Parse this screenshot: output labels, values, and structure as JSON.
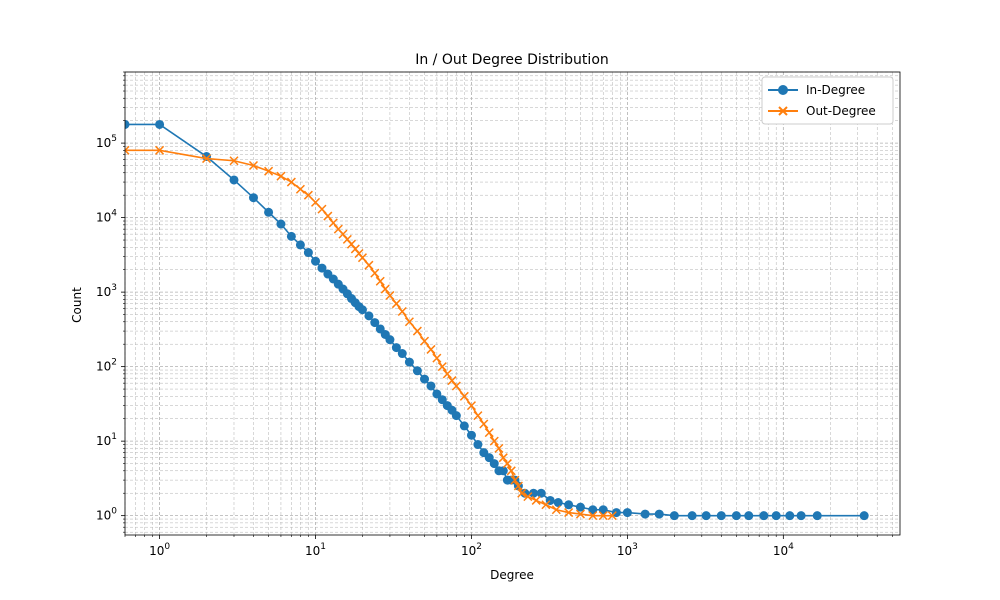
{
  "chart_data": {
    "type": "line",
    "title": "In / Out Degree Distribution",
    "xlabel": "Degree",
    "ylabel": "Count",
    "xscale": "log",
    "yscale": "log",
    "xlim": [
      0.6,
      56000
    ],
    "ylim": [
      0.55,
      900000
    ],
    "grid": true,
    "legend_position": "top-right",
    "x_ticks": [
      1,
      10,
      100,
      1000,
      10000
    ],
    "x_tick_labels": [
      {
        "base": "10",
        "exp": "0"
      },
      {
        "base": "10",
        "exp": "1"
      },
      {
        "base": "10",
        "exp": "2"
      },
      {
        "base": "10",
        "exp": "3"
      },
      {
        "base": "10",
        "exp": "4"
      }
    ],
    "y_ticks": [
      1,
      10,
      100,
      1000,
      10000,
      100000
    ],
    "y_tick_labels": [
      {
        "base": "10",
        "exp": "0"
      },
      {
        "base": "10",
        "exp": "1"
      },
      {
        "base": "10",
        "exp": "2"
      },
      {
        "base": "10",
        "exp": "3"
      },
      {
        "base": "10",
        "exp": "4"
      },
      {
        "base": "10",
        "exp": "5"
      }
    ],
    "series": [
      {
        "name": "In-Degree",
        "color": "#1f77b4",
        "marker": "circle",
        "points": [
          [
            0.6,
            178000
          ],
          [
            1,
            178000
          ],
          [
            2,
            66000
          ],
          [
            3,
            32000
          ],
          [
            4,
            18500
          ],
          [
            5,
            11800
          ],
          [
            6,
            8200
          ],
          [
            7,
            5600
          ],
          [
            8,
            4300
          ],
          [
            9,
            3400
          ],
          [
            10,
            2600
          ],
          [
            11,
            2100
          ],
          [
            12,
            1750
          ],
          [
            13,
            1500
          ],
          [
            14,
            1280
          ],
          [
            15,
            1100
          ],
          [
            16,
            950
          ],
          [
            17,
            820
          ],
          [
            18,
            720
          ],
          [
            19,
            640
          ],
          [
            20,
            580
          ],
          [
            22,
            480
          ],
          [
            24,
            390
          ],
          [
            26,
            320
          ],
          [
            28,
            270
          ],
          [
            30,
            230
          ],
          [
            33,
            180
          ],
          [
            36,
            150
          ],
          [
            40,
            115
          ],
          [
            45,
            88
          ],
          [
            50,
            68
          ],
          [
            55,
            55
          ],
          [
            60,
            43
          ],
          [
            65,
            36
          ],
          [
            70,
            30
          ],
          [
            75,
            26
          ],
          [
            80,
            22
          ],
          [
            90,
            16
          ],
          [
            100,
            12
          ],
          [
            110,
            9
          ],
          [
            120,
            7
          ],
          [
            130,
            6
          ],
          [
            140,
            5
          ],
          [
            150,
            4
          ],
          [
            160,
            4
          ],
          [
            170,
            3
          ],
          [
            180,
            3
          ],
          [
            190,
            3
          ],
          [
            200,
            2.5
          ],
          [
            220,
            2
          ],
          [
            250,
            2
          ],
          [
            280,
            2
          ],
          [
            320,
            1.6
          ],
          [
            360,
            1.5
          ],
          [
            420,
            1.4
          ],
          [
            500,
            1.3
          ],
          [
            600,
            1.2
          ],
          [
            700,
            1.2
          ],
          [
            850,
            1.1
          ],
          [
            1000,
            1.1
          ],
          [
            1300,
            1.05
          ],
          [
            1600,
            1.05
          ],
          [
            2000,
            1
          ],
          [
            2600,
            1
          ],
          [
            3200,
            1
          ],
          [
            4000,
            1
          ],
          [
            5000,
            1
          ],
          [
            6000,
            1
          ],
          [
            7500,
            1
          ],
          [
            9000,
            1
          ],
          [
            11000,
            1
          ],
          [
            13000,
            1
          ],
          [
            16500,
            1
          ],
          [
            33000,
            1
          ]
        ]
      },
      {
        "name": "Out-Degree",
        "color": "#ff7f0e",
        "marker": "x",
        "points": [
          [
            0.6,
            80000
          ],
          [
            1,
            80000
          ],
          [
            2,
            62000
          ],
          [
            3,
            58000
          ],
          [
            4,
            50000
          ],
          [
            5,
            42000
          ],
          [
            6,
            36000
          ],
          [
            7,
            30000
          ],
          [
            8,
            24000
          ],
          [
            9,
            20000
          ],
          [
            10,
            16000
          ],
          [
            11,
            13000
          ],
          [
            12,
            10500
          ],
          [
            13,
            8500
          ],
          [
            14,
            7000
          ],
          [
            15,
            6000
          ],
          [
            16,
            5100
          ],
          [
            17,
            4400
          ],
          [
            18,
            3800
          ],
          [
            19,
            3300
          ],
          [
            20,
            2900
          ],
          [
            22,
            2300
          ],
          [
            24,
            1800
          ],
          [
            26,
            1400
          ],
          [
            28,
            1100
          ],
          [
            30,
            900
          ],
          [
            33,
            700
          ],
          [
            36,
            550
          ],
          [
            40,
            400
          ],
          [
            45,
            300
          ],
          [
            50,
            220
          ],
          [
            55,
            170
          ],
          [
            60,
            130
          ],
          [
            65,
            100
          ],
          [
            70,
            80
          ],
          [
            75,
            65
          ],
          [
            80,
            55
          ],
          [
            90,
            40
          ],
          [
            100,
            30
          ],
          [
            110,
            22
          ],
          [
            120,
            17
          ],
          [
            130,
            13
          ],
          [
            140,
            10
          ],
          [
            150,
            8
          ],
          [
            160,
            6
          ],
          [
            170,
            5
          ],
          [
            180,
            4
          ],
          [
            190,
            3
          ],
          [
            200,
            2.5
          ],
          [
            210,
            2
          ],
          [
            230,
            1.8
          ],
          [
            260,
            1.6
          ],
          [
            300,
            1.4
          ],
          [
            350,
            1.2
          ],
          [
            420,
            1.1
          ],
          [
            500,
            1.05
          ],
          [
            600,
            1
          ],
          [
            700,
            1
          ],
          [
            800,
            1
          ]
        ]
      }
    ]
  }
}
